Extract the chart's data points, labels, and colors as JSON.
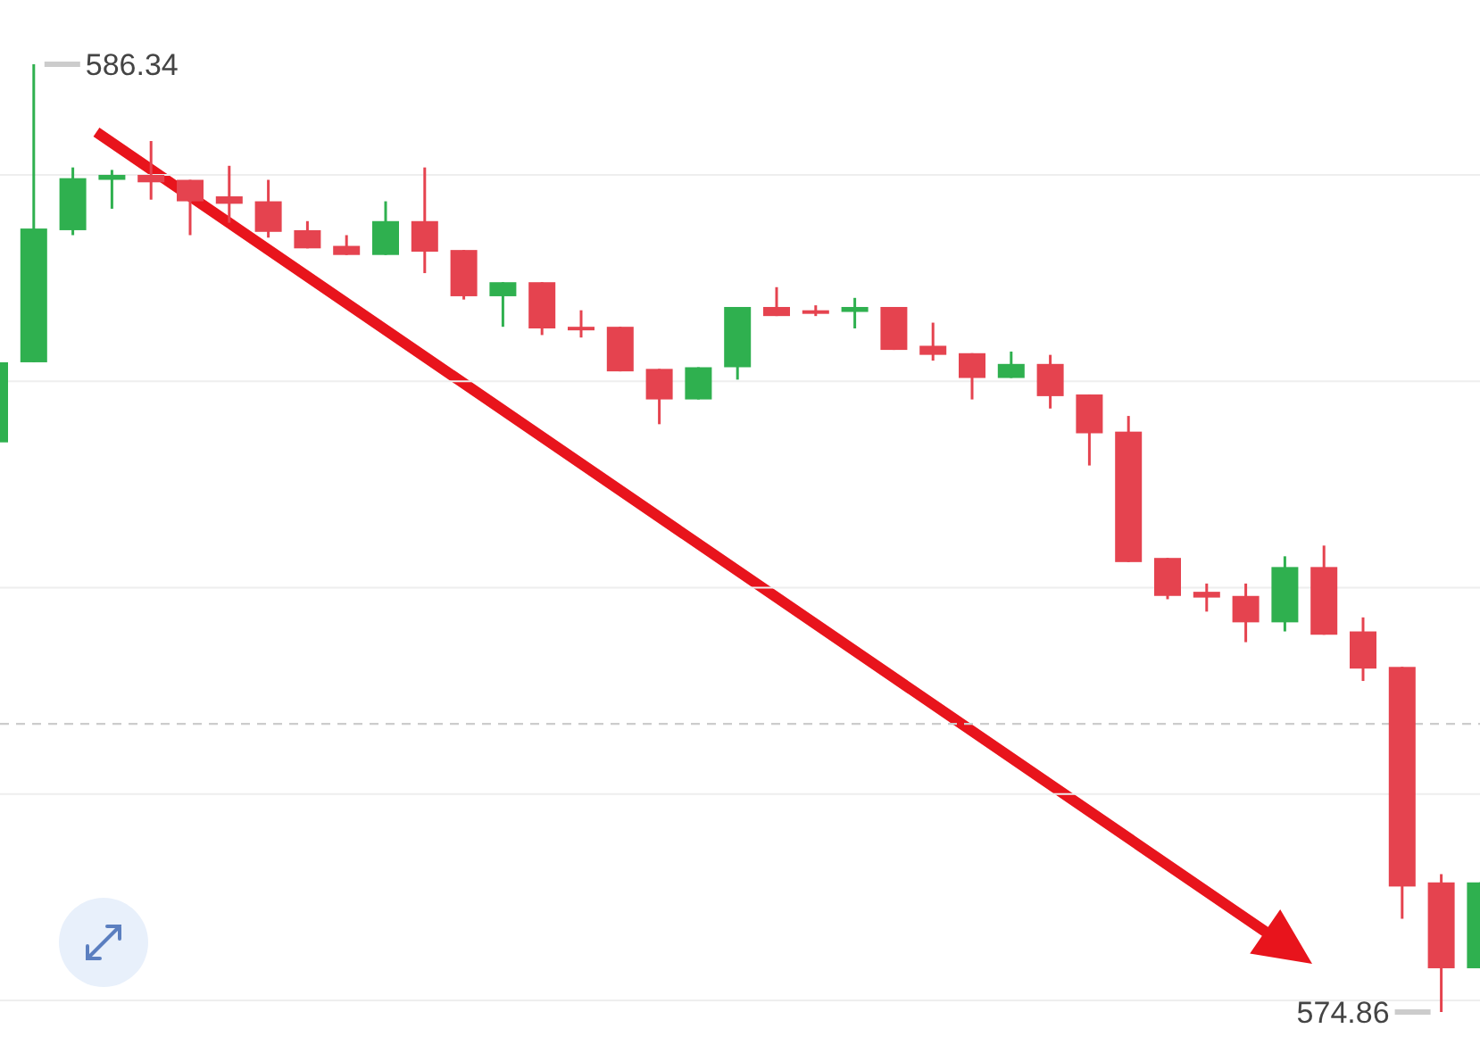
{
  "chart_data": {
    "type": "candlestick",
    "categories": [
      null,
      null,
      null,
      null,
      null,
      null,
      null,
      null,
      null,
      null,
      null,
      null,
      null,
      null,
      null,
      null,
      null,
      null,
      null,
      null,
      null,
      null,
      null,
      null,
      null,
      null,
      null,
      null,
      null,
      null,
      null,
      null,
      null,
      null,
      null,
      null,
      null,
      null,
      null
    ],
    "ohlc": [
      [
        581.76,
        582.73,
        581.76,
        582.73
      ],
      [
        582.73,
        586.34,
        582.73,
        584.35
      ],
      [
        584.33,
        585.09,
        584.27,
        584.96
      ],
      [
        584.94,
        585.06,
        584.59,
        585.0
      ],
      [
        585.0,
        585.41,
        584.7,
        584.91
      ],
      [
        584.94,
        584.94,
        584.27,
        584.68
      ],
      [
        584.74,
        585.11,
        584.42,
        584.65
      ],
      [
        584.68,
        584.94,
        584.24,
        584.31
      ],
      [
        584.33,
        584.44,
        584.11,
        584.11
      ],
      [
        584.14,
        584.27,
        584.03,
        584.03
      ],
      [
        584.03,
        584.68,
        584.03,
        584.44
      ],
      [
        584.44,
        585.09,
        583.81,
        584.07
      ],
      [
        584.09,
        584.09,
        583.49,
        583.53
      ],
      [
        583.53,
        583.7,
        583.16,
        583.7
      ],
      [
        583.7,
        583.7,
        583.06,
        583.14
      ],
      [
        583.16,
        583.36,
        583.03,
        583.12
      ],
      [
        583.16,
        583.16,
        582.62,
        582.62
      ],
      [
        582.65,
        582.65,
        581.98,
        582.28
      ],
      [
        582.28,
        582.67,
        582.28,
        582.67
      ],
      [
        582.67,
        583.4,
        582.52,
        583.4
      ],
      [
        583.4,
        583.64,
        583.29,
        583.29
      ],
      [
        583.36,
        583.42,
        583.29,
        583.32
      ],
      [
        583.34,
        583.51,
        583.14,
        583.4
      ],
      [
        583.4,
        583.4,
        582.88,
        582.88
      ],
      [
        582.93,
        583.21,
        582.75,
        582.82
      ],
      [
        582.84,
        582.84,
        582.28,
        582.54
      ],
      [
        582.54,
        582.86,
        582.54,
        582.71
      ],
      [
        582.71,
        582.82,
        582.17,
        582.32
      ],
      [
        582.34,
        582.34,
        581.48,
        581.87
      ],
      [
        581.89,
        582.08,
        580.31,
        580.31
      ],
      [
        580.36,
        580.36,
        579.86,
        579.9
      ],
      [
        579.95,
        580.05,
        579.71,
        579.88
      ],
      [
        579.9,
        580.05,
        579.34,
        579.58
      ],
      [
        579.58,
        580.38,
        579.47,
        580.25
      ],
      [
        580.25,
        580.51,
        579.43,
        579.43
      ],
      [
        579.47,
        579.64,
        578.87,
        579.02
      ],
      [
        579.04,
        579.04,
        575.99,
        576.38
      ],
      [
        576.43,
        576.53,
        574.86,
        575.39
      ],
      [
        575.39,
        576.43,
        575.39,
        576.43
      ]
    ],
    "colors": [
      "#2fb04f",
      "#2fb04f",
      "#2fb04f",
      "#2fb04f",
      "#e5434f",
      "#e5434f",
      "#e5434f",
      "#e5434f",
      "#e5434f",
      "#e5434f",
      "#2fb04f",
      "#e5434f",
      "#e5434f",
      "#2fb04f",
      "#e5434f",
      "#e5434f",
      "#e5434f",
      "#e5434f",
      "#2fb04f",
      "#2fb04f",
      "#e5434f",
      "#e5434f",
      "#2fb04f",
      "#e5434f",
      "#e5434f",
      "#e5434f",
      "#2fb04f",
      "#e5434f",
      "#e5434f",
      "#e5434f",
      "#e5434f",
      "#e5434f",
      "#e5434f",
      "#2fb04f",
      "#e5434f",
      "#e5434f",
      "#e5434f",
      "#e5434f",
      "#2fb04f"
    ],
    "yticks": [
      {
        "value": 575,
        "label": null
      },
      {
        "value": 577.5,
        "label": null
      },
      {
        "value": 580,
        "label": null
      },
      {
        "value": 582.5,
        "label": null
      },
      {
        "value": 585,
        "label": null
      }
    ],
    "grid": "y",
    "tick_labels": false,
    "ref_lines": [
      {
        "axis": "y",
        "value": 578.35,
        "line_style": "dashed",
        "color": "#cccccc"
      }
    ],
    "annotations": [
      "586.34",
      "574.86"
    ]
  }
}
